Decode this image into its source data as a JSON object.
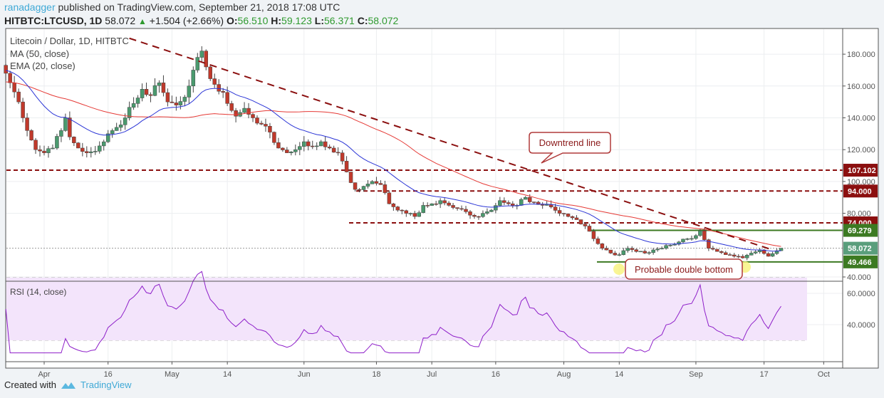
{
  "header": {
    "author": "ranadagger",
    "published": "published on TradingView.com, September 21, 2018 17:08 UTC",
    "symbol": "HITBTC:LTCUSD, 1D",
    "last": "58.072",
    "change": "+1.504 (+2.66%)",
    "open_label": "O:",
    "open": "56.510",
    "high_label": "H:",
    "high": "59.123",
    "low_label": "L:",
    "low": "56.371",
    "close_label": "C:",
    "close": "58.072"
  },
  "legend": {
    "title": "Litecoin / Dollar, 1D, HITBTC",
    "ma": "MA (50, close)",
    "ema": "EMA (20, close)",
    "rsi": "RSI (14, close)"
  },
  "annotations": {
    "downtrend": "Downtrend line",
    "double_bottom": "Probable double bottom"
  },
  "colors": {
    "up": "#4a9a6e",
    "down": "#c0392b",
    "ma": "#e53935",
    "ema": "#2b35d6",
    "resistance": "#8b0f0f",
    "support": "#3c7a22",
    "rsi": "#8e1fc9",
    "last": "#5a9e7c"
  },
  "footer": {
    "created": "Created with",
    "brand": "TradingView"
  },
  "chart_data": {
    "type": "candlestick",
    "price_axis": {
      "min": 40,
      "max": 190,
      "ticks": [
        "40.000",
        "80.000",
        "100.000",
        "120.000",
        "140.000",
        "160.000",
        "180.000"
      ]
    },
    "rsi_axis": {
      "ticks": [
        "40.0000",
        "60.0000"
      ],
      "band": [
        30,
        70
      ]
    },
    "x_ticks": [
      {
        "label": "Apr",
        "day": 10
      },
      {
        "label": "16",
        "day": 25
      },
      {
        "label": "May",
        "day": 40
      },
      {
        "label": "14",
        "day": 53
      },
      {
        "label": "Jun",
        "day": 71
      },
      {
        "label": "18",
        "day": 88
      },
      {
        "label": "Jul",
        "day": 101
      },
      {
        "label": "16",
        "day": 116
      },
      {
        "label": "Aug",
        "day": 132
      },
      {
        "label": "14",
        "day": 145
      },
      {
        "label": "Sep",
        "day": 163
      },
      {
        "label": "17",
        "day": 179
      },
      {
        "label": "Oct",
        "day": 193
      }
    ],
    "day_zero": "2018-03-22",
    "close_keypoints": [
      [
        1,
        168
      ],
      [
        2,
        162
      ],
      [
        4,
        150
      ],
      [
        5,
        140
      ],
      [
        6,
        132
      ],
      [
        7,
        126
      ],
      [
        8,
        120
      ],
      [
        10,
        118
      ],
      [
        12,
        121
      ],
      [
        14,
        132
      ],
      [
        15,
        140
      ],
      [
        16,
        128
      ],
      [
        18,
        121
      ],
      [
        20,
        118
      ],
      [
        22,
        119
      ],
      [
        25,
        130
      ],
      [
        27,
        134
      ],
      [
        29,
        140
      ],
      [
        31,
        149
      ],
      [
        33,
        158
      ],
      [
        35,
        154
      ],
      [
        37,
        162
      ],
      [
        39,
        150
      ],
      [
        41,
        148
      ],
      [
        43,
        153
      ],
      [
        44,
        160
      ],
      [
        45,
        170
      ],
      [
        46,
        178
      ],
      [
        47,
        182
      ],
      [
        48,
        172
      ],
      [
        50,
        161
      ],
      [
        52,
        156
      ],
      [
        53,
        149
      ],
      [
        55,
        141
      ],
      [
        57,
        146
      ],
      [
        59,
        140
      ],
      [
        61,
        136
      ],
      [
        63,
        131
      ],
      [
        65,
        121
      ],
      [
        67,
        118
      ],
      [
        69,
        120
      ],
      [
        71,
        125
      ],
      [
        73,
        122
      ],
      [
        75,
        125
      ],
      [
        77,
        121
      ],
      [
        79,
        118
      ],
      [
        81,
        106
      ],
      [
        83,
        95
      ],
      [
        85,
        97
      ],
      [
        87,
        100
      ],
      [
        89,
        98
      ],
      [
        91,
        86
      ],
      [
        93,
        82
      ],
      [
        95,
        80
      ],
      [
        97,
        78
      ],
      [
        99,
        85
      ],
      [
        101,
        86
      ],
      [
        103,
        88
      ],
      [
        105,
        85
      ],
      [
        107,
        83
      ],
      [
        109,
        81
      ],
      [
        111,
        78
      ],
      [
        113,
        80
      ],
      [
        115,
        82
      ],
      [
        117,
        88
      ],
      [
        119,
        86
      ],
      [
        121,
        85
      ],
      [
        123,
        90
      ],
      [
        125,
        87
      ],
      [
        127,
        85
      ],
      [
        129,
        84
      ],
      [
        131,
        80
      ],
      [
        133,
        78
      ],
      [
        135,
        76
      ],
      [
        137,
        72
      ],
      [
        139,
        64
      ],
      [
        141,
        58
      ],
      [
        143,
        55
      ],
      [
        145,
        54
      ],
      [
        147,
        58
      ],
      [
        149,
        56
      ],
      [
        151,
        55
      ],
      [
        153,
        57
      ],
      [
        155,
        58
      ],
      [
        157,
        60
      ],
      [
        159,
        62
      ],
      [
        161,
        64
      ],
      [
        163,
        66
      ],
      [
        164,
        69
      ],
      [
        166,
        58
      ],
      [
        168,
        56
      ],
      [
        170,
        54
      ],
      [
        172,
        53
      ],
      [
        174,
        52
      ],
      [
        176,
        55
      ],
      [
        178,
        57
      ],
      [
        180,
        53
      ],
      [
        182,
        56.51
      ],
      [
        183,
        58.072
      ]
    ],
    "levels": {
      "resistance": [
        107.102,
        94.0,
        74.0
      ],
      "support": [
        69.279,
        49.466
      ],
      "last": 58.072
    },
    "level_labels": [
      "107.102",
      "94.000",
      "74.000",
      "69.279",
      "58.072",
      "49.466"
    ],
    "downtrend_line": {
      "start": {
        "day": 30,
        "price": 190
      },
      "end": {
        "day": 181,
        "price": 57
      }
    }
  }
}
